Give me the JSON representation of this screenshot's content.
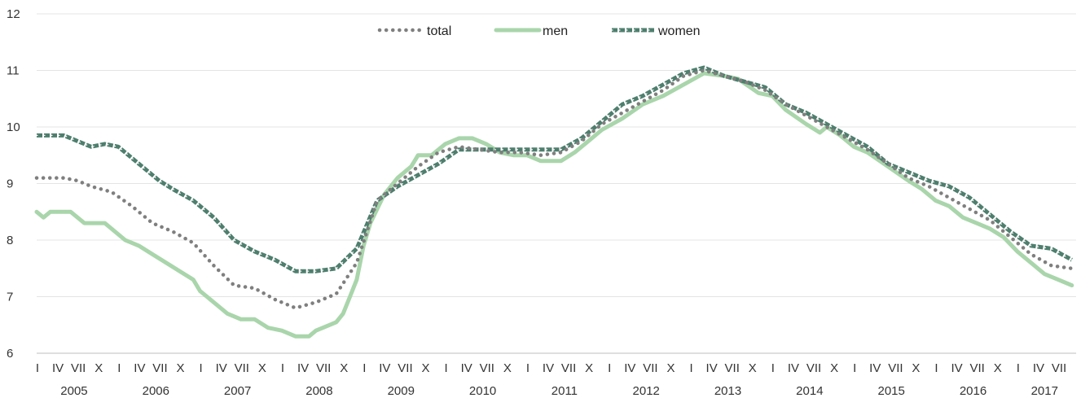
{
  "chart_data": {
    "type": "line",
    "title": "",
    "xlabel": "",
    "ylabel": "",
    "ylim": [
      6,
      12
    ],
    "yticks": [
      6,
      7,
      8,
      9,
      10,
      11,
      12
    ],
    "grid": "horizontal",
    "legend_position": "top-center",
    "x_start": "2005-01",
    "x_end": "2017-09",
    "month_tick_labels": [
      "I",
      "IV",
      "VII",
      "X"
    ],
    "years": [
      "2005",
      "2006",
      "2007",
      "2008",
      "2009",
      "2010",
      "2011",
      "2012",
      "2013",
      "2014",
      "2015",
      "2016",
      "2017"
    ],
    "series": [
      {
        "name": "total",
        "color": "#7f7f7f",
        "style": "dotted",
        "points": [
          [
            "2005-01",
            9.1
          ],
          [
            "2005-05",
            9.1
          ],
          [
            "2005-07",
            9.05
          ],
          [
            "2005-09",
            8.95
          ],
          [
            "2005-12",
            8.85
          ],
          [
            "2006-03",
            8.6
          ],
          [
            "2006-06",
            8.3
          ],
          [
            "2006-09",
            8.15
          ],
          [
            "2006-12",
            7.95
          ],
          [
            "2007-03",
            7.55
          ],
          [
            "2007-06",
            7.2
          ],
          [
            "2007-09",
            7.15
          ],
          [
            "2007-12",
            6.95
          ],
          [
            "2008-03",
            6.8
          ],
          [
            "2008-06",
            6.9
          ],
          [
            "2008-09",
            7.05
          ],
          [
            "2008-12",
            7.6
          ],
          [
            "2009-03",
            8.7
          ],
          [
            "2009-06",
            9.0
          ],
          [
            "2009-09",
            9.3
          ],
          [
            "2009-12",
            9.55
          ],
          [
            "2010-03",
            9.65
          ],
          [
            "2010-06",
            9.6
          ],
          [
            "2010-09",
            9.55
          ],
          [
            "2010-12",
            9.55
          ],
          [
            "2011-03",
            9.5
          ],
          [
            "2011-06",
            9.55
          ],
          [
            "2011-09",
            9.75
          ],
          [
            "2011-12",
            10.05
          ],
          [
            "2012-03",
            10.25
          ],
          [
            "2012-06",
            10.45
          ],
          [
            "2012-09",
            10.65
          ],
          [
            "2012-12",
            10.9
          ],
          [
            "2013-03",
            11.0
          ],
          [
            "2013-06",
            10.9
          ],
          [
            "2013-09",
            10.8
          ],
          [
            "2013-12",
            10.65
          ],
          [
            "2014-03",
            10.4
          ],
          [
            "2014-06",
            10.2
          ],
          [
            "2014-09",
            10.0
          ],
          [
            "2014-12",
            9.8
          ],
          [
            "2015-03",
            9.6
          ],
          [
            "2015-06",
            9.35
          ],
          [
            "2015-09",
            9.1
          ],
          [
            "2015-12",
            8.95
          ],
          [
            "2016-03",
            8.75
          ],
          [
            "2016-06",
            8.55
          ],
          [
            "2016-09",
            8.35
          ],
          [
            "2016-12",
            8.05
          ],
          [
            "2017-03",
            7.75
          ],
          [
            "2017-06",
            7.55
          ],
          [
            "2017-09",
            7.5
          ]
        ]
      },
      {
        "name": "men",
        "color": "#a9d5ab",
        "style": "solid",
        "points": [
          [
            "2005-01",
            8.5
          ],
          [
            "2005-02",
            8.4
          ],
          [
            "2005-03",
            8.5
          ],
          [
            "2005-06",
            8.5
          ],
          [
            "2005-08",
            8.3
          ],
          [
            "2005-11",
            8.3
          ],
          [
            "2006-02",
            8.0
          ],
          [
            "2006-04",
            7.9
          ],
          [
            "2006-06",
            7.75
          ],
          [
            "2006-08",
            7.6
          ],
          [
            "2006-10",
            7.45
          ],
          [
            "2006-12",
            7.3
          ],
          [
            "2007-01",
            7.1
          ],
          [
            "2007-03",
            6.9
          ],
          [
            "2007-05",
            6.7
          ],
          [
            "2007-07",
            6.6
          ],
          [
            "2007-09",
            6.6
          ],
          [
            "2007-11",
            6.45
          ],
          [
            "2008-01",
            6.4
          ],
          [
            "2008-03",
            6.3
          ],
          [
            "2008-05",
            6.3
          ],
          [
            "2008-06",
            6.4
          ],
          [
            "2008-08",
            6.5
          ],
          [
            "2008-09",
            6.55
          ],
          [
            "2008-10",
            6.7
          ],
          [
            "2008-11",
            7.0
          ],
          [
            "2008-12",
            7.3
          ],
          [
            "2009-01",
            7.9
          ],
          [
            "2009-02",
            8.3
          ],
          [
            "2009-04",
            8.8
          ],
          [
            "2009-06",
            9.1
          ],
          [
            "2009-08",
            9.3
          ],
          [
            "2009-09",
            9.5
          ],
          [
            "2009-11",
            9.5
          ],
          [
            "2010-01",
            9.7
          ],
          [
            "2010-03",
            9.8
          ],
          [
            "2010-05",
            9.8
          ],
          [
            "2010-07",
            9.7
          ],
          [
            "2010-09",
            9.55
          ],
          [
            "2010-11",
            9.5
          ],
          [
            "2011-01",
            9.5
          ],
          [
            "2011-03",
            9.4
          ],
          [
            "2011-06",
            9.4
          ],
          [
            "2011-08",
            9.55
          ],
          [
            "2011-10",
            9.75
          ],
          [
            "2011-12",
            9.95
          ],
          [
            "2012-03",
            10.15
          ],
          [
            "2012-06",
            10.4
          ],
          [
            "2012-09",
            10.55
          ],
          [
            "2012-12",
            10.75
          ],
          [
            "2013-03",
            10.95
          ],
          [
            "2013-06",
            10.9
          ],
          [
            "2013-08",
            10.85
          ],
          [
            "2013-11",
            10.6
          ],
          [
            "2014-01",
            10.55
          ],
          [
            "2014-03",
            10.3
          ],
          [
            "2014-06",
            10.05
          ],
          [
            "2014-08",
            9.9
          ],
          [
            "2014-09",
            10.0
          ],
          [
            "2014-11",
            9.85
          ],
          [
            "2015-01",
            9.65
          ],
          [
            "2015-03",
            9.55
          ],
          [
            "2015-06",
            9.3
          ],
          [
            "2015-09",
            9.05
          ],
          [
            "2015-11",
            8.9
          ],
          [
            "2016-01",
            8.7
          ],
          [
            "2016-03",
            8.6
          ],
          [
            "2016-05",
            8.4
          ],
          [
            "2016-07",
            8.3
          ],
          [
            "2016-09",
            8.2
          ],
          [
            "2016-11",
            8.05
          ],
          [
            "2017-01",
            7.8
          ],
          [
            "2017-03",
            7.6
          ],
          [
            "2017-05",
            7.4
          ],
          [
            "2017-07",
            7.3
          ],
          [
            "2017-09",
            7.2
          ]
        ]
      },
      {
        "name": "women",
        "color": "#4e7e6e",
        "style": "dashed-marker",
        "points": [
          [
            "2005-01",
            9.85
          ],
          [
            "2005-05",
            9.85
          ],
          [
            "2005-07",
            9.75
          ],
          [
            "2005-09",
            9.65
          ],
          [
            "2005-11",
            9.7
          ],
          [
            "2006-01",
            9.65
          ],
          [
            "2006-04",
            9.35
          ],
          [
            "2006-07",
            9.05
          ],
          [
            "2006-09",
            8.9
          ],
          [
            "2006-12",
            8.7
          ],
          [
            "2007-03",
            8.4
          ],
          [
            "2007-06",
            8.0
          ],
          [
            "2007-09",
            7.8
          ],
          [
            "2007-12",
            7.65
          ],
          [
            "2008-03",
            7.45
          ],
          [
            "2008-06",
            7.45
          ],
          [
            "2008-09",
            7.5
          ],
          [
            "2008-12",
            7.85
          ],
          [
            "2009-03",
            8.7
          ],
          [
            "2009-06",
            8.95
          ],
          [
            "2009-09",
            9.15
          ],
          [
            "2009-12",
            9.35
          ],
          [
            "2010-03",
            9.6
          ],
          [
            "2010-06",
            9.6
          ],
          [
            "2010-09",
            9.6
          ],
          [
            "2010-12",
            9.6
          ],
          [
            "2011-03",
            9.6
          ],
          [
            "2011-06",
            9.6
          ],
          [
            "2011-09",
            9.8
          ],
          [
            "2011-12",
            10.1
          ],
          [
            "2012-03",
            10.4
          ],
          [
            "2012-06",
            10.55
          ],
          [
            "2012-09",
            10.75
          ],
          [
            "2012-12",
            10.95
          ],
          [
            "2013-03",
            11.05
          ],
          [
            "2013-06",
            10.9
          ],
          [
            "2013-09",
            10.8
          ],
          [
            "2013-12",
            10.7
          ],
          [
            "2014-03",
            10.4
          ],
          [
            "2014-06",
            10.25
          ],
          [
            "2014-09",
            10.05
          ],
          [
            "2014-12",
            9.85
          ],
          [
            "2015-03",
            9.65
          ],
          [
            "2015-06",
            9.35
          ],
          [
            "2015-09",
            9.2
          ],
          [
            "2015-12",
            9.05
          ],
          [
            "2016-03",
            8.95
          ],
          [
            "2016-06",
            8.75
          ],
          [
            "2016-09",
            8.45
          ],
          [
            "2016-12",
            8.15
          ],
          [
            "2017-03",
            7.9
          ],
          [
            "2017-06",
            7.85
          ],
          [
            "2017-09",
            7.65
          ]
        ]
      }
    ]
  }
}
